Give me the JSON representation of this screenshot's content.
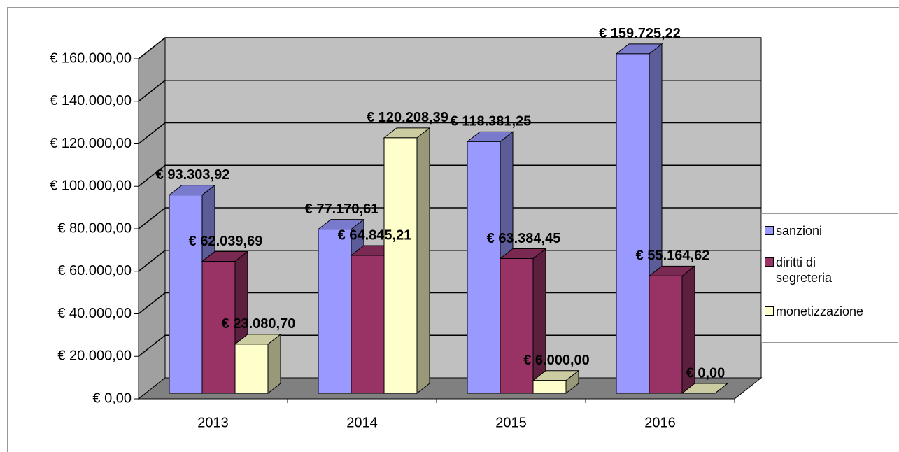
{
  "chart_data": {
    "type": "bar3d",
    "categories": [
      "2013",
      "2014",
      "2015",
      "2016"
    ],
    "series": [
      {
        "name": "sanzioni",
        "color": "#9999ff",
        "values": [
          93303.92,
          77170.61,
          118381.25,
          159725.22
        ],
        "value_labels": [
          "€ 93.303,92",
          "€ 77.170,61",
          "€ 118.381,25",
          "€ 159.725,22"
        ]
      },
      {
        "name": "diritti di segreteria",
        "color": "#993366",
        "values": [
          62039.69,
          64845.21,
          63384.45,
          55164.62
        ],
        "value_labels": [
          "€ 62.039,69",
          "€ 64.845,21",
          "€ 63.384,45",
          "€ 55.164,62"
        ]
      },
      {
        "name": "monetizzazione",
        "color": "#ffffcc",
        "values": [
          23080.7,
          120208.39,
          6000.0,
          0.0
        ],
        "value_labels": [
          "€ 23.080,70",
          "€ 120.208,39",
          "€ 6.000,00",
          "€ 0,00"
        ]
      }
    ],
    "ylim": [
      0,
      160000
    ],
    "yticks": [
      {
        "value": 0,
        "label": "€ 0,00"
      },
      {
        "value": 20000,
        "label": "€ 20.000,00"
      },
      {
        "value": 40000,
        "label": "€ 40.000,00"
      },
      {
        "value": 60000,
        "label": "€ 60.000,00"
      },
      {
        "value": 80000,
        "label": "€ 80.000,00"
      },
      {
        "value": 100000,
        "label": "€ 100.000,00"
      },
      {
        "value": 120000,
        "label": "€ 120.000,00"
      },
      {
        "value": 140000,
        "label": "€ 140.000,00"
      },
      {
        "value": 160000,
        "label": "€ 160.000,00"
      }
    ],
    "grid": true,
    "legend": "right"
  }
}
